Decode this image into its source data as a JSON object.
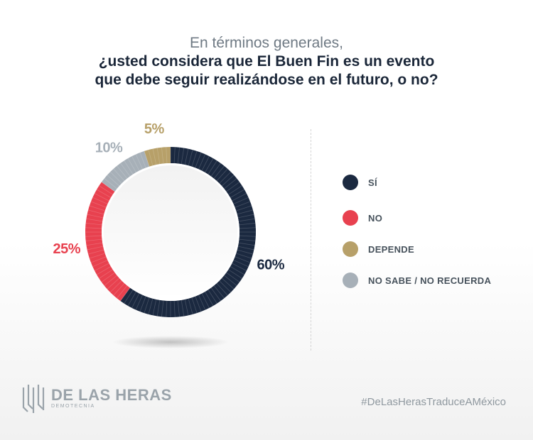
{
  "header": {
    "subtitle": "En términos generales,",
    "question_line1": "¿usted considera que El Buen Fin es un evento",
    "question_line2": "que debe seguir realizándose en el futuro, o no?"
  },
  "chart_data": {
    "type": "pie",
    "categories": [
      "SÍ",
      "NO",
      "DEPENDE",
      "NO SABE / NO RECUERDA"
    ],
    "values": [
      60,
      25,
      5,
      10
    ],
    "value_labels": [
      "60%",
      "25%",
      "5%",
      "10%"
    ],
    "colors": [
      "#1b2940",
      "#e8414f",
      "#b7a069",
      "#a7b0b8"
    ],
    "legend_placement": "right",
    "donut": true
  },
  "legend": {
    "items": [
      {
        "label": "SÍ",
        "color": "#1b2940"
      },
      {
        "label": "NO",
        "color": "#e8414f"
      },
      {
        "label": "DEPENDE",
        "color": "#b7a069"
      },
      {
        "label": "NO SABE / NO RECUERDA",
        "color": "#a7b0b8"
      }
    ]
  },
  "footer": {
    "logo_name": "DE LAS HERAS",
    "logo_sub": "DEMOTECNIA",
    "hashtag": "#DeLasHerasTraduceAMéxico"
  }
}
